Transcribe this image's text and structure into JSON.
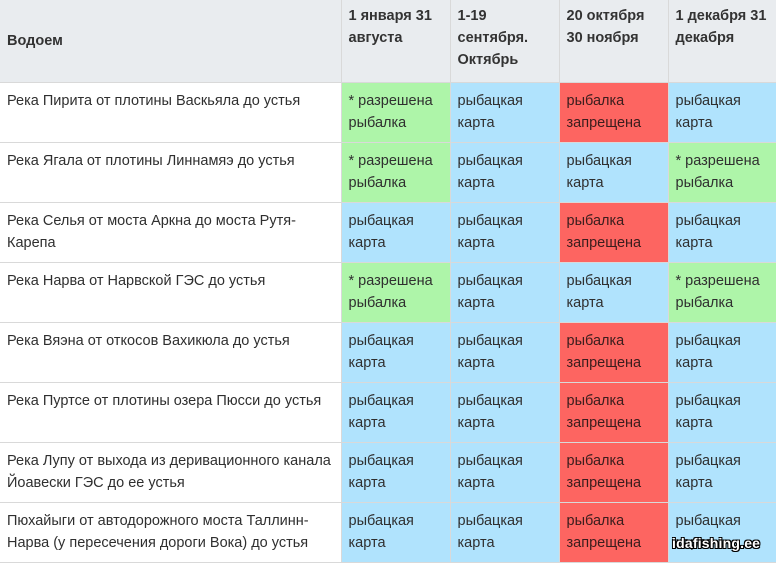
{
  "table": {
    "headers": [
      "Водоем",
      "1 января 31 августа",
      "1-19 сентября. Октябрь",
      "20 октября 30 ноября",
      "1 декабря 31 декабря"
    ],
    "rows": [
      {
        "name": "Река Пирита от плотины Васкьяла до устья",
        "p1": "* разрешена рыбалка",
        "p2": "рыбацкая карта",
        "p3": "рыбалка запрещена",
        "p4": "рыбацкая карта"
      },
      {
        "name": "Река Ягала от плотины Линнамяэ до устья",
        "p1": "* разрешена рыбалка",
        "p2": "рыбацкая карта",
        "p3": "рыбацкая карта",
        "p4": "* разрешена рыбалка"
      },
      {
        "name": "Река Селья от моста Аркна до моста Рутя-Карепа",
        "p1": "рыбацкая карта",
        "p2": "рыбацкая карта",
        "p3": "рыбалка запрещена",
        "p4": "рыбацкая карта"
      },
      {
        "name": "Река Нарва от Нарвской ГЭС до устья",
        "p1": "* разрешена рыбалка",
        "p2": "рыбацкая карта",
        "p3": "рыбацкая карта",
        "p4": "* разрешена рыбалка"
      },
      {
        "name": "Река Вяэна от откосов Вахикюла до устья",
        "p1": "рыбацкая карта",
        "p2": "рыбацкая карта",
        "p3": "рыбалка запрещена",
        "p4": "рыбацкая карта"
      },
      {
        "name": "Река Пуртсе от плотины озера Пюсси до устья",
        "p1": "рыбацкая карта",
        "p2": "рыбацкая карта",
        "p3": "рыбалка запрещена",
        "p4": "рыбацкая карта"
      },
      {
        "name": "Река Лупу от выхода из деривационного канала Йоавески ГЭС до ее устья",
        "p1": "рыбацкая карта",
        "p2": "рыбацкая карта",
        "p3": "рыбалка запрещена",
        "p4": "рыбацкая карта"
      },
      {
        "name": "Пюхайыги от автодорожного моста Таллинн-Нарва (у пересечения дороги Вока) до устья",
        "p1": "рыбацкая карта",
        "p2": "рыбацкая карта",
        "p3": "рыбалка запрещена",
        "p4": "рыбацкая карта"
      }
    ]
  },
  "colors": {
    "allowed": "#aef5a9",
    "card": "#b0e3fd",
    "forbidden": "#fd6561",
    "header": "#e9ecef"
  },
  "watermark": "idafishing.ee"
}
